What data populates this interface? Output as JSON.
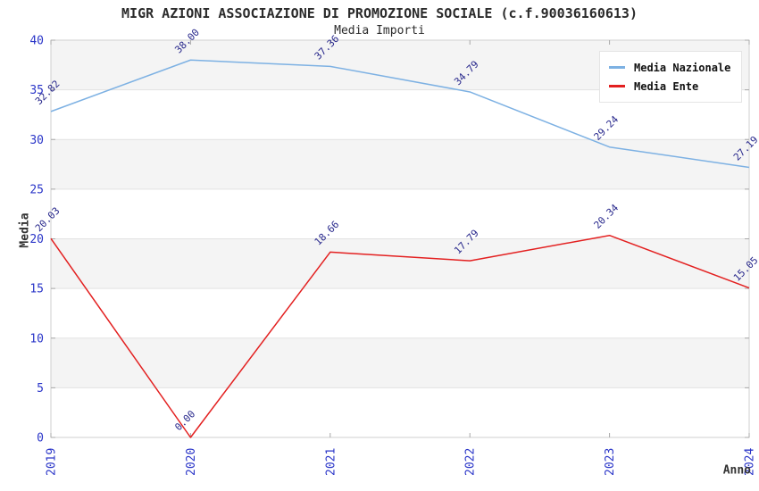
{
  "chart_data": {
    "type": "line",
    "title": "MIGR AZIONI ASSOCIAZIONE DI PROMOZIONE SOCIALE (c.f.90036160613)",
    "subtitle": "Media Importi",
    "xlabel": "Anno",
    "ylabel": "Media",
    "categories": [
      "2019",
      "2020",
      "2021",
      "2022",
      "2023",
      "2024"
    ],
    "series": [
      {
        "name": "Media Nazionale",
        "color": "#7db1e3",
        "values": [
          32.82,
          38.0,
          37.36,
          34.79,
          29.24,
          27.19
        ]
      },
      {
        "name": "Media Ente",
        "color": "#e32020",
        "values": [
          20.03,
          0.0,
          18.66,
          17.79,
          20.34,
          15.05
        ]
      }
    ],
    "ylim": [
      0,
      40
    ],
    "yticks": [
      0,
      5,
      10,
      15,
      20,
      25,
      30,
      35,
      40
    ],
    "point_labels": true,
    "legend_position": "top-right",
    "grid": true,
    "colors": {
      "band_fill": "#f4f4f4",
      "gridline": "#e2e2e2",
      "plot_border": "#cfcfcf",
      "tick_mark": "#a8a8a8",
      "tick_label": "#2a35c8",
      "point_label": "#28288c",
      "text": "#2b2b2b"
    }
  }
}
